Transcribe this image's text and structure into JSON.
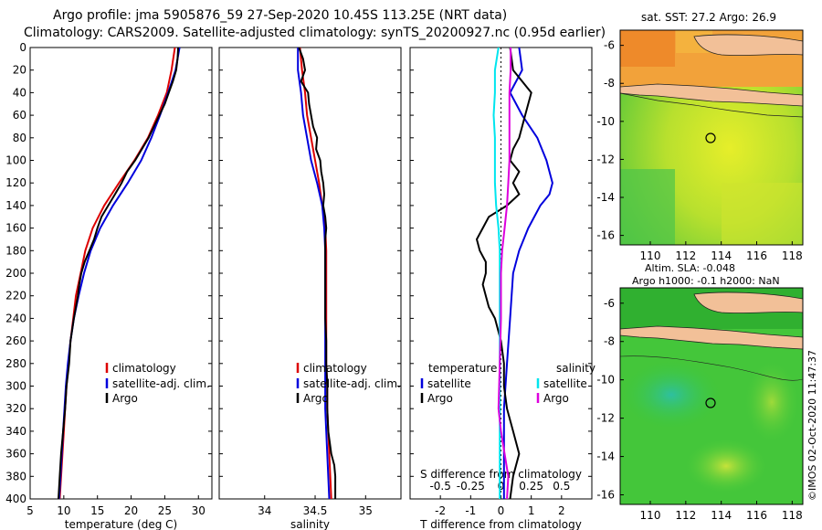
{
  "header": {
    "line1": "Argo profile: jma 5905876_59 27-Sep-2020 10.45S 113.25E (NRT data)",
    "line2": "Climatology: CARS2009. Satellite-adjusted climatology: synTS_20200927.nc (0.95d earlier)"
  },
  "credit": "©IMOS 02-Oct-2020 11:47:37",
  "colors": {
    "climatology": "#dd0000",
    "satellite": "#0000dd",
    "argo": "#000000",
    "sat_salinity": "#00e5ee",
    "argo_salinity": "#dd00dd"
  },
  "depth_ticks": [
    0,
    20,
    40,
    60,
    80,
    100,
    120,
    140,
    160,
    180,
    200,
    220,
    240,
    260,
    280,
    300,
    320,
    340,
    360,
    380,
    400
  ],
  "chart_data": [
    {
      "id": "temperature",
      "type": "line",
      "xlabel": "temperature (deg C)",
      "ylabel": "depth",
      "xlim": [
        5,
        32
      ],
      "ylim": [
        0,
        400
      ],
      "xticks": [
        5,
        10,
        15,
        20,
        25,
        30
      ],
      "xtick_labels": [
        "5",
        "10",
        "15",
        "20",
        "25",
        "30"
      ],
      "legend": [
        "climatology",
        "satellite-adj. clim.",
        "Argo"
      ],
      "series": [
        {
          "name": "climatology",
          "color": "#dd0000",
          "depth": [
            0,
            20,
            40,
            60,
            80,
            100,
            120,
            140,
            160,
            180,
            200,
            220,
            240,
            260,
            280,
            300,
            320,
            340,
            360,
            380,
            400
          ],
          "values": [
            26.5,
            26.0,
            25.3,
            24.0,
            22.5,
            20.5,
            18.2,
            16.0,
            14.3,
            13.2,
            12.5,
            11.8,
            11.4,
            11.0,
            10.7,
            10.4,
            10.2,
            10.0,
            9.8,
            9.6,
            9.4
          ]
        },
        {
          "name": "satellite-adj. clim.",
          "color": "#0000dd",
          "depth": [
            0,
            20,
            40,
            60,
            80,
            100,
            120,
            140,
            160,
            180,
            200,
            220,
            240,
            260,
            280,
            300,
            320,
            340,
            360,
            380,
            400
          ],
          "values": [
            27.2,
            26.6,
            25.5,
            24.3,
            23.0,
            21.5,
            19.5,
            17.3,
            15.4,
            14.0,
            13.0,
            12.2,
            11.5,
            11.0,
            10.6,
            10.3,
            10.1,
            9.9,
            9.7,
            9.5,
            9.3
          ]
        },
        {
          "name": "Argo",
          "color": "#000000",
          "depth": [
            0,
            10,
            20,
            30,
            40,
            50,
            60,
            70,
            80,
            90,
            100,
            110,
            120,
            130,
            140,
            150,
            160,
            170,
            180,
            190,
            200,
            210,
            220,
            230,
            240,
            260,
            280,
            300,
            320,
            340,
            360,
            380,
            400
          ],
          "values": [
            27.0,
            26.9,
            26.7,
            26.2,
            25.6,
            25.0,
            24.2,
            23.4,
            22.6,
            21.6,
            20.6,
            19.4,
            18.6,
            17.6,
            16.6,
            15.6,
            15.0,
            14.5,
            13.8,
            13.1,
            12.6,
            12.3,
            12.1,
            11.8,
            11.5,
            11.0,
            10.8,
            10.4,
            10.2,
            9.9,
            9.6,
            9.4,
            9.2
          ]
        }
      ]
    },
    {
      "id": "salinity",
      "type": "line",
      "xlabel": "salinity",
      "ylabel": "depth",
      "xlim": [
        33.55,
        35.35
      ],
      "ylim": [
        0,
        400
      ],
      "xticks": [
        34,
        34.5,
        35
      ],
      "xtick_labels": [
        "34",
        "34.5",
        "35"
      ],
      "legend": [
        "climatology",
        "satellite-adj. clim.",
        "Argo"
      ],
      "series": [
        {
          "name": "climatology",
          "color": "#dd0000",
          "depth": [
            0,
            20,
            40,
            60,
            80,
            100,
            120,
            140,
            160,
            180,
            200,
            220,
            240,
            260,
            280,
            300,
            320,
            340,
            360,
            380,
            400
          ],
          "values": [
            34.35,
            34.37,
            34.4,
            34.42,
            34.46,
            34.5,
            34.54,
            34.57,
            34.6,
            34.61,
            34.61,
            34.61,
            34.61,
            34.61,
            34.61,
            34.62,
            34.62,
            34.63,
            34.64,
            34.65,
            34.66
          ]
        },
        {
          "name": "satellite-adj. clim.",
          "color": "#0000dd",
          "depth": [
            0,
            20,
            40,
            60,
            80,
            100,
            120,
            140,
            160,
            180,
            200,
            220,
            240,
            260,
            280,
            300,
            320,
            340,
            360,
            380,
            400
          ],
          "values": [
            34.33,
            34.33,
            34.36,
            34.38,
            34.42,
            34.46,
            34.52,
            34.57,
            34.59,
            34.6,
            34.6,
            34.6,
            34.6,
            34.6,
            34.6,
            34.6,
            34.6,
            34.61,
            34.62,
            34.63,
            34.64
          ]
        },
        {
          "name": "Argo",
          "color": "#000000",
          "depth": [
            0,
            10,
            20,
            30,
            40,
            50,
            60,
            70,
            80,
            90,
            100,
            110,
            120,
            130,
            140,
            150,
            160,
            170,
            180,
            200,
            220,
            240,
            260,
            280,
            300,
            320,
            340,
            360,
            370,
            380,
            400
          ],
          "values": [
            34.34,
            34.38,
            34.4,
            34.36,
            34.43,
            34.44,
            34.46,
            34.48,
            34.52,
            34.51,
            34.55,
            34.56,
            34.58,
            34.59,
            34.58,
            34.6,
            34.61,
            34.6,
            34.6,
            34.6,
            34.6,
            34.6,
            34.61,
            34.61,
            34.62,
            34.62,
            34.63,
            34.66,
            34.69,
            34.7,
            34.7
          ]
        }
      ]
    },
    {
      "id": "difference",
      "type": "line",
      "xlabel": "T difference from climatology",
      "top_label": "S difference from climatology",
      "ylabel": "depth",
      "xlim": [
        -3,
        3
      ],
      "ylim": [
        0,
        400
      ],
      "xticks": [
        -2,
        -1,
        0,
        1,
        2
      ],
      "xtick_labels": [
        "-2",
        "-1",
        "0",
        "1",
        "2"
      ],
      "sticks": [
        -0.5,
        -0.25,
        0,
        0.25,
        0.5
      ],
      "stick_labels": [
        "-0.5",
        "-0.25",
        "0",
        "0.25",
        "0.5"
      ],
      "s_range": [
        -0.75,
        0.75
      ],
      "legend_t_title": "temperature",
      "legend_s_title": "salinity",
      "legend_labels": [
        "satellite",
        "Argo",
        "satellite",
        "Argo"
      ],
      "series": [
        {
          "name": "temperature satellite",
          "color": "#0000dd",
          "depth": [
            0,
            20,
            40,
            60,
            80,
            100,
            110,
            120,
            130,
            140,
            160,
            180,
            200,
            240,
            280,
            320,
            360,
            400
          ],
          "values": [
            0.6,
            0.7,
            0.3,
            0.7,
            1.2,
            1.5,
            1.6,
            1.7,
            1.6,
            1.3,
            0.9,
            0.6,
            0.4,
            0.3,
            0.2,
            0.1,
            0.1,
            0.1
          ]
        },
        {
          "name": "temperature Argo",
          "color": "#000000",
          "depth": [
            0,
            20,
            30,
            40,
            60,
            80,
            90,
            100,
            110,
            120,
            130,
            140,
            150,
            160,
            170,
            180,
            190,
            200,
            210,
            220,
            230,
            240,
            260,
            280,
            300,
            320,
            340,
            360,
            380,
            400
          ],
          "values": [
            0.3,
            0.4,
            0.7,
            1.0,
            0.8,
            0.6,
            0.4,
            0.3,
            0.6,
            0.4,
            0.6,
            0.2,
            -0.4,
            -0.6,
            -0.8,
            -0.7,
            -0.5,
            -0.5,
            -0.6,
            -0.5,
            -0.4,
            -0.2,
            0.0,
            0.1,
            0.1,
            0.2,
            0.4,
            0.6,
            0.4,
            0.3
          ]
        },
        {
          "name": "salinity satellite",
          "color": "#00e5ee",
          "depth": [
            0,
            20,
            40,
            60,
            80,
            100,
            120,
            140,
            160,
            180,
            200,
            240,
            280,
            320,
            360,
            400
          ],
          "values": [
            -0.02,
            -0.05,
            -0.05,
            -0.06,
            -0.05,
            -0.05,
            -0.05,
            -0.04,
            -0.02,
            -0.01,
            -0.01,
            -0.01,
            -0.01,
            -0.01,
            -0.01,
            -0.01
          ]
        },
        {
          "name": "salinity Argo",
          "color": "#dd00dd",
          "depth": [
            0,
            20,
            40,
            60,
            80,
            100,
            120,
            140,
            160,
            180,
            200,
            240,
            280,
            320,
            340,
            360,
            380,
            400
          ],
          "values": [
            0.08,
            0.08,
            0.07,
            0.07,
            0.07,
            0.07,
            0.06,
            0.05,
            0.03,
            0.01,
            0.0,
            0.0,
            -0.01,
            -0.02,
            0.0,
            0.03,
            0.06,
            0.05
          ]
        }
      ]
    }
  ],
  "maps": [
    {
      "id": "sst-map",
      "title": "sat. SST: 27.2 Argo: 26.9",
      "sub_title": "",
      "yticks": [
        "-6",
        "-8",
        "-10",
        "-12",
        "-14",
        "-16"
      ],
      "xticks": [
        "110",
        "112",
        "114",
        "116",
        "118"
      ]
    },
    {
      "id": "sla-map",
      "title": "Altim. SLA: -0.048",
      "sub_title": "Argo h1000: -0.1 h2000: NaN",
      "yticks": [
        "-6",
        "-8",
        "-10",
        "-12",
        "-14",
        "-16"
      ],
      "xticks": [
        "110",
        "112",
        "114",
        "116",
        "118"
      ]
    }
  ]
}
